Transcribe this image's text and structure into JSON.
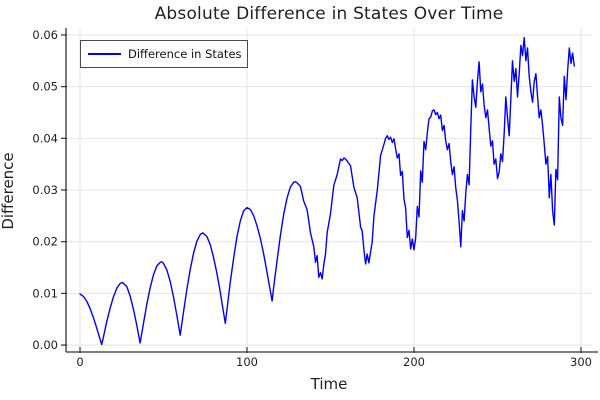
{
  "chart_data": {
    "type": "line",
    "title": "Absolute Difference in States Over Time",
    "xlabel": "Time",
    "ylabel": "Difference",
    "legend_position": "top-left",
    "grid": true,
    "xlim": [
      -8.4,
      306.6
    ],
    "ylim": [
      -0.00135,
      0.06135
    ],
    "x_ticks": [
      0,
      100,
      200,
      300
    ],
    "x_tick_labels": [
      "0",
      "100",
      "200",
      "300"
    ],
    "y_ticks": [
      0.0,
      0.01,
      0.02,
      0.03,
      0.04,
      0.05,
      0.06
    ],
    "y_tick_labels": [
      "0.00",
      "0.01",
      "0.02",
      "0.03",
      "0.04",
      "0.05",
      "0.06"
    ],
    "colors": {
      "line": "#0000ff",
      "grid": "#e4e4e4",
      "spine": "#333333",
      "text": "#1f1f1f",
      "background": "#ffffff"
    },
    "series": [
      {
        "name": "Difference in States",
        "color": "#0000ff",
        "points": [
          [
            0,
            0.0099
          ],
          [
            2,
            0.0094
          ],
          [
            4,
            0.0085
          ],
          [
            6,
            0.0071
          ],
          [
            8,
            0.0053
          ],
          [
            10,
            0.0033
          ],
          [
            12,
            0.0011
          ],
          [
            13,
            0.0001
          ],
          [
            14,
            0.0015
          ],
          [
            16,
            0.0045
          ],
          [
            18,
            0.0071
          ],
          [
            20,
            0.0093
          ],
          [
            22,
            0.011
          ],
          [
            24,
            0.0119
          ],
          [
            25.5,
            0.0121
          ],
          [
            28,
            0.0113
          ],
          [
            30,
            0.0095
          ],
          [
            32,
            0.0069
          ],
          [
            34,
            0.0038
          ],
          [
            35,
            0.0021
          ],
          [
            36,
            0.0004
          ],
          [
            38,
            0.0042
          ],
          [
            40,
            0.0079
          ],
          [
            42,
            0.0111
          ],
          [
            44,
            0.0136
          ],
          [
            46,
            0.0153
          ],
          [
            48,
            0.016
          ],
          [
            49,
            0.0161
          ],
          [
            50,
            0.0158
          ],
          [
            52,
            0.0145
          ],
          [
            54,
            0.0123
          ],
          [
            56,
            0.0093
          ],
          [
            58,
            0.0057
          ],
          [
            60,
            0.0019
          ],
          [
            62,
            0.0065
          ],
          [
            64,
            0.0108
          ],
          [
            66,
            0.0146
          ],
          [
            68,
            0.0178
          ],
          [
            70,
            0.0201
          ],
          [
            72,
            0.0214
          ],
          [
            73.5,
            0.0217
          ],
          [
            76,
            0.021
          ],
          [
            78,
            0.0194
          ],
          [
            80,
            0.0169
          ],
          [
            82,
            0.0138
          ],
          [
            84,
            0.0102
          ],
          [
            86,
            0.0062
          ],
          [
            87,
            0.0042
          ],
          [
            88,
            0.0069
          ],
          [
            90,
            0.0122
          ],
          [
            92,
            0.0169
          ],
          [
            94,
            0.021
          ],
          [
            96,
            0.024
          ],
          [
            98,
            0.026
          ],
          [
            100,
            0.0266
          ],
          [
            102,
            0.0262
          ],
          [
            104,
            0.025
          ],
          [
            106,
            0.0231
          ],
          [
            108,
            0.0206
          ],
          [
            110,
            0.0176
          ],
          [
            112,
            0.0141
          ],
          [
            114,
            0.0104
          ],
          [
            115,
            0.0085
          ],
          [
            116,
            0.0112
          ],
          [
            118,
            0.0164
          ],
          [
            120,
            0.0212
          ],
          [
            122,
            0.0253
          ],
          [
            124,
            0.0285
          ],
          [
            126,
            0.0306
          ],
          [
            128,
            0.0315
          ],
          [
            129,
            0.0316
          ],
          [
            130,
            0.0314
          ],
          [
            132,
            0.0307
          ],
          [
            134,
            0.0278
          ],
          [
            136,
            0.0262
          ],
          [
            138,
            0.0217
          ],
          [
            140,
            0.019
          ],
          [
            141,
            0.016
          ],
          [
            142,
            0.0173
          ],
          [
            143,
            0.0131
          ],
          [
            144,
            0.014
          ],
          [
            145,
            0.0128
          ],
          [
            146,
            0.0156
          ],
          [
            147,
            0.0176
          ],
          [
            148,
            0.0218
          ],
          [
            150,
            0.0254
          ],
          [
            152,
            0.0309
          ],
          [
            154,
            0.033
          ],
          [
            156,
            0.036
          ],
          [
            157,
            0.0357
          ],
          [
            158,
            0.0362
          ],
          [
            159,
            0.036
          ],
          [
            160,
            0.0356
          ],
          [
            162,
            0.0347
          ],
          [
            164,
            0.0305
          ],
          [
            166,
            0.0285
          ],
          [
            168,
            0.0228
          ],
          [
            169,
            0.0221
          ],
          [
            170,
            0.0185
          ],
          [
            171,
            0.0157
          ],
          [
            172,
            0.0176
          ],
          [
            173,
            0.0159
          ],
          [
            174,
            0.018
          ],
          [
            175,
            0.02
          ],
          [
            176,
            0.0249
          ],
          [
            178,
            0.03
          ],
          [
            180,
            0.0367
          ],
          [
            182,
            0.0388
          ],
          [
            183,
            0.04
          ],
          [
            184,
            0.0405
          ],
          [
            185,
            0.0398
          ],
          [
            186,
            0.0402
          ],
          [
            187,
            0.0392
          ],
          [
            188,
            0.0399
          ],
          [
            189,
            0.038
          ],
          [
            190,
            0.0362
          ],
          [
            191,
            0.037
          ],
          [
            192,
            0.0328
          ],
          [
            193,
            0.0336
          ],
          [
            194,
            0.0282
          ],
          [
            195,
            0.0266
          ],
          [
            196,
            0.0208
          ],
          [
            197,
            0.0222
          ],
          [
            198,
            0.0186
          ],
          [
            199,
            0.0205
          ],
          [
            200,
            0.0184
          ],
          [
            201,
            0.0208
          ],
          [
            202,
            0.0268
          ],
          [
            203,
            0.0248
          ],
          [
            204,
            0.0337
          ],
          [
            205,
            0.0315
          ],
          [
            206,
            0.0394
          ],
          [
            207,
            0.0378
          ],
          [
            208,
            0.0412
          ],
          [
            209,
            0.0438
          ],
          [
            210,
            0.0441
          ],
          [
            211,
            0.0453
          ],
          [
            212,
            0.0455
          ],
          [
            213,
            0.0446
          ],
          [
            214,
            0.045
          ],
          [
            215,
            0.0438
          ],
          [
            216,
            0.0445
          ],
          [
            217,
            0.0415
          ],
          [
            218,
            0.0425
          ],
          [
            219,
            0.0395
          ],
          [
            220,
            0.0378
          ],
          [
            221,
            0.039
          ],
          [
            222,
            0.0355
          ],
          [
            223,
            0.033
          ],
          [
            224,
            0.0345
          ],
          [
            225,
            0.0305
          ],
          [
            226,
            0.028
          ],
          [
            227,
            0.0238
          ],
          [
            228,
            0.019
          ],
          [
            229,
            0.026
          ],
          [
            230,
            0.024
          ],
          [
            231,
            0.0295
          ],
          [
            232,
            0.033
          ],
          [
            233,
            0.031
          ],
          [
            234,
            0.042
          ],
          [
            235,
            0.0513
          ],
          [
            236,
            0.048
          ],
          [
            237,
            0.046
          ],
          [
            238,
            0.051
          ],
          [
            239,
            0.0548
          ],
          [
            240,
            0.049
          ],
          [
            241,
            0.0505
          ],
          [
            242,
            0.0465
          ],
          [
            243,
            0.044
          ],
          [
            244,
            0.0455
          ],
          [
            245,
            0.042
          ],
          [
            246,
            0.0385
          ],
          [
            247,
            0.0395
          ],
          [
            248,
            0.035
          ],
          [
            249,
            0.036
          ],
          [
            250,
            0.0322
          ],
          [
            251,
            0.0335
          ],
          [
            252,
            0.037
          ],
          [
            253,
            0.0355
          ],
          [
            254,
            0.041
          ],
          [
            255,
            0.048
          ],
          [
            256,
            0.044
          ],
          [
            257,
            0.0405
          ],
          [
            258,
            0.0475
          ],
          [
            259,
            0.055
          ],
          [
            260,
            0.051
          ],
          [
            261,
            0.0535
          ],
          [
            262,
            0.048
          ],
          [
            263,
            0.0525
          ],
          [
            264,
            0.058
          ],
          [
            265,
            0.056
          ],
          [
            266,
            0.0595
          ],
          [
            267,
            0.055
          ],
          [
            268,
            0.0575
          ],
          [
            269,
            0.052
          ],
          [
            270,
            0.049
          ],
          [
            271,
            0.047
          ],
          [
            272,
            0.051
          ],
          [
            273,
            0.0525
          ],
          [
            274,
            0.048
          ],
          [
            275,
            0.044
          ],
          [
            276,
            0.0455
          ],
          [
            277,
            0.0425
          ],
          [
            278,
            0.039
          ],
          [
            279,
            0.035
          ],
          [
            280,
            0.0365
          ],
          [
            281,
            0.0285
          ],
          [
            282,
            0.033
          ],
          [
            283,
            0.026
          ],
          [
            284,
            0.0232
          ],
          [
            285,
            0.034
          ],
          [
            286,
            0.032
          ],
          [
            287,
            0.048
          ],
          [
            288,
            0.044
          ],
          [
            289,
            0.0425
          ],
          [
            290,
            0.052
          ],
          [
            291,
            0.0475
          ],
          [
            292,
            0.053
          ],
          [
            293,
            0.0575
          ],
          [
            294,
            0.0545
          ],
          [
            295,
            0.0565
          ],
          [
            296,
            0.054
          ]
        ]
      }
    ]
  }
}
